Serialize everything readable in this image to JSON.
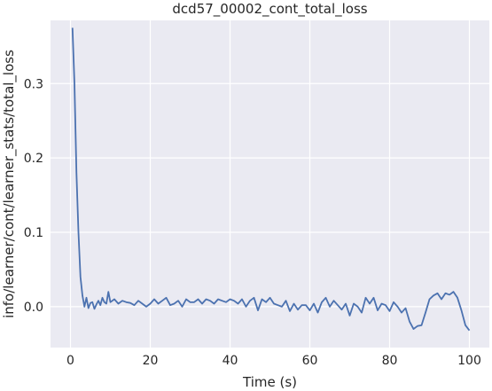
{
  "chart_data": {
    "type": "line",
    "title": "dcd57_00002_cont_total_loss",
    "xlabel": "Time (s)",
    "ylabel": "info/learner/cont/learner_stats/total_loss",
    "xlim": [
      -5,
      105
    ],
    "ylim": [
      -0.055,
      0.385
    ],
    "xticks": [
      0,
      20,
      40,
      60,
      80,
      100
    ],
    "xtick_labels": [
      "0",
      "20",
      "40",
      "60",
      "80",
      "100"
    ],
    "yticks": [
      0.0,
      0.1,
      0.2,
      0.3
    ],
    "ytick_labels": [
      "0.0",
      "0.1",
      "0.2",
      "0.3"
    ],
    "grid": true,
    "background": "#eaeaf2",
    "line_color": "#4c72b0",
    "series": [
      {
        "x": [
          0.5,
          1.0,
          1.5,
          2.0,
          2.5,
          3.0,
          3.5,
          4.0,
          4.5,
          5.0,
          5.5,
          6.0,
          6.5,
          7.0,
          7.5,
          8.0,
          8.5,
          9.0,
          9.5,
          10.0,
          11,
          12,
          13,
          14,
          15,
          16,
          17,
          18,
          19,
          20,
          21,
          22,
          23,
          24,
          25,
          26,
          27,
          28,
          29,
          30,
          31,
          32,
          33,
          34,
          35,
          36,
          37,
          38,
          39,
          40,
          41,
          42,
          43,
          44,
          45,
          46,
          47,
          48,
          49,
          50,
          51,
          52,
          53,
          54,
          55,
          56,
          57,
          58,
          59,
          60,
          61,
          62,
          63,
          64,
          65,
          66,
          67,
          68,
          69,
          70,
          71,
          72,
          73,
          74,
          75,
          76,
          77,
          78,
          79,
          80,
          81,
          82,
          83,
          84,
          85,
          86,
          87,
          88,
          89,
          90,
          91,
          92,
          93,
          94,
          95,
          96,
          97,
          98,
          99,
          100
        ],
        "y": [
          0.375,
          0.3,
          0.18,
          0.1,
          0.04,
          0.015,
          0.0,
          0.012,
          -0.002,
          0.005,
          0.006,
          -0.003,
          0.003,
          0.008,
          0.002,
          0.012,
          0.006,
          0.004,
          0.02,
          0.006,
          0.01,
          0.004,
          0.008,
          0.006,
          0.005,
          0.002,
          0.008,
          0.004,
          0.0,
          0.004,
          0.01,
          0.004,
          0.008,
          0.012,
          0.002,
          0.004,
          0.008,
          0.0,
          0.01,
          0.006,
          0.006,
          0.01,
          0.004,
          0.01,
          0.008,
          0.004,
          0.01,
          0.008,
          0.006,
          0.01,
          0.008,
          0.004,
          0.01,
          0.0,
          0.008,
          0.012,
          -0.005,
          0.01,
          0.006,
          0.012,
          0.004,
          0.002,
          0.0,
          0.008,
          -0.006,
          0.004,
          -0.004,
          0.002,
          0.002,
          -0.005,
          0.004,
          -0.008,
          0.006,
          0.012,
          0.0,
          0.008,
          0.002,
          -0.004,
          0.004,
          -0.012,
          0.004,
          0.0,
          -0.008,
          0.012,
          0.004,
          0.012,
          -0.005,
          0.004,
          0.002,
          -0.006,
          0.006,
          0.0,
          -0.008,
          -0.002,
          -0.02,
          -0.03,
          -0.026,
          -0.025,
          -0.008,
          0.01,
          0.015,
          0.018,
          0.01,
          0.018,
          0.016,
          0.02,
          0.012,
          -0.005,
          -0.025,
          -0.032
        ]
      }
    ]
  }
}
